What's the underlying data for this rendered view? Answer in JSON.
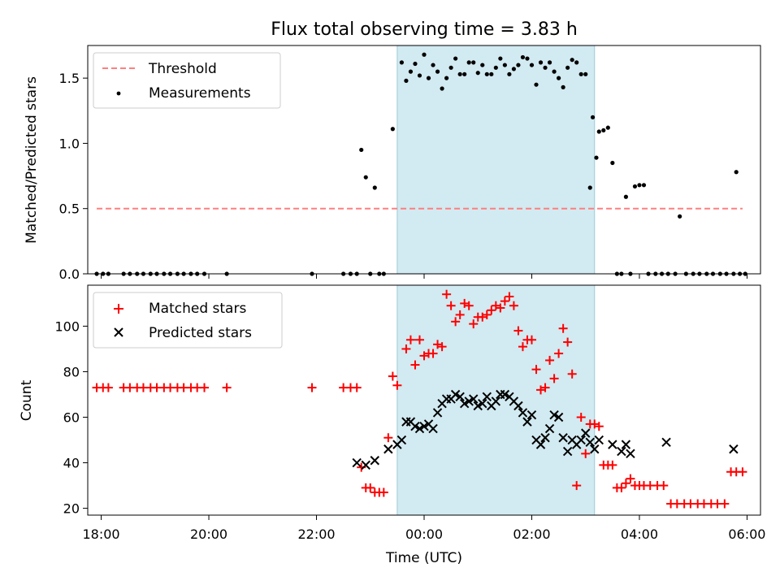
{
  "chart_data": [
    {
      "type": "scatter",
      "title": "Flux total observing time = 3.83 h",
      "xlabel": "",
      "ylabel": "Matched/Predicted stars",
      "xlim": [
        "17:45",
        "06:15"
      ],
      "ylim": [
        0,
        1.75
      ],
      "yticks": [
        "0.0",
        "0.5",
        "1.0",
        "1.5"
      ],
      "legend_position": "top-left",
      "shaded_interval": {
        "start": "23:30",
        "end": "03:10",
        "color": "#add8e6"
      },
      "threshold": {
        "name": "Threshold",
        "value": 0.5,
        "from": "17:55",
        "to": "05:55",
        "color": "#ff7f7f",
        "style": "dashed"
      },
      "series": [
        {
          "name": "Measurements",
          "color": "#000000",
          "marker": "dot",
          "points": [
            [
              "17:55",
              0
            ],
            [
              "18:02",
              0
            ],
            [
              "18:08",
              0
            ],
            [
              "18:25",
              0
            ],
            [
              "18:32",
              0
            ],
            [
              "18:40",
              0
            ],
            [
              "18:47",
              0
            ],
            [
              "18:55",
              0
            ],
            [
              "19:02",
              0
            ],
            [
              "19:10",
              0
            ],
            [
              "19:17",
              0
            ],
            [
              "19:25",
              0
            ],
            [
              "19:32",
              0
            ],
            [
              "19:40",
              0
            ],
            [
              "19:47",
              0
            ],
            [
              "19:55",
              0
            ],
            [
              "20:20",
              0
            ],
            [
              "21:55",
              0
            ],
            [
              "22:30",
              0
            ],
            [
              "22:38",
              0
            ],
            [
              "22:45",
              0
            ],
            [
              "22:50",
              0.95
            ],
            [
              "22:55",
              0.74
            ],
            [
              "23:00",
              0
            ],
            [
              "23:05",
              0.66
            ],
            [
              "23:10",
              0
            ],
            [
              "23:15",
              0
            ],
            [
              "23:25",
              1.11
            ],
            [
              "23:35",
              1.62
            ],
            [
              "23:40",
              1.48
            ],
            [
              "23:45",
              1.55
            ],
            [
              "23:50",
              1.61
            ],
            [
              "23:55",
              1.52
            ],
            [
              "00:00",
              1.68
            ],
            [
              "00:05",
              1.5
            ],
            [
              "00:10",
              1.6
            ],
            [
              "00:15",
              1.55
            ],
            [
              "00:20",
              1.42
            ],
            [
              "00:25",
              1.5
            ],
            [
              "00:30",
              1.58
            ],
            [
              "00:35",
              1.65
            ],
            [
              "00:40",
              1.53
            ],
            [
              "00:45",
              1.53
            ],
            [
              "00:50",
              1.62
            ],
            [
              "00:55",
              1.62
            ],
            [
              "01:00",
              1.54
            ],
            [
              "01:05",
              1.6
            ],
            [
              "01:10",
              1.53
            ],
            [
              "01:15",
              1.53
            ],
            [
              "01:20",
              1.58
            ],
            [
              "01:25",
              1.65
            ],
            [
              "01:30",
              1.6
            ],
            [
              "01:35",
              1.53
            ],
            [
              "01:40",
              1.57
            ],
            [
              "01:45",
              1.6
            ],
            [
              "01:50",
              1.66
            ],
            [
              "01:55",
              1.65
            ],
            [
              "02:00",
              1.6
            ],
            [
              "02:05",
              1.45
            ],
            [
              "02:10",
              1.62
            ],
            [
              "02:15",
              1.58
            ],
            [
              "02:20",
              1.62
            ],
            [
              "02:25",
              1.55
            ],
            [
              "02:30",
              1.5
            ],
            [
              "02:35",
              1.43
            ],
            [
              "02:40",
              1.58
            ],
            [
              "02:45",
              1.64
            ],
            [
              "02:50",
              1.62
            ],
            [
              "02:55",
              1.53
            ],
            [
              "03:00",
              1.53
            ],
            [
              "03:05",
              0.66
            ],
            [
              "03:08",
              1.2
            ],
            [
              "03:12",
              0.89
            ],
            [
              "03:15",
              1.09
            ],
            [
              "03:20",
              1.1
            ],
            [
              "03:25",
              1.12
            ],
            [
              "03:30",
              0.85
            ],
            [
              "03:35",
              0
            ],
            [
              "03:40",
              0
            ],
            [
              "03:45",
              0.59
            ],
            [
              "03:50",
              0
            ],
            [
              "03:55",
              0.67
            ],
            [
              "04:00",
              0.68
            ],
            [
              "04:05",
              0.68
            ],
            [
              "04:10",
              0
            ],
            [
              "04:18",
              0
            ],
            [
              "04:25",
              0
            ],
            [
              "04:32",
              0
            ],
            [
              "04:40",
              0
            ],
            [
              "04:45",
              0.44
            ],
            [
              "04:52",
              0
            ],
            [
              "05:00",
              0
            ],
            [
              "05:07",
              0
            ],
            [
              "05:15",
              0
            ],
            [
              "05:22",
              0
            ],
            [
              "05:30",
              0
            ],
            [
              "05:37",
              0
            ],
            [
              "05:45",
              0
            ],
            [
              "05:48",
              0.78
            ],
            [
              "05:52",
              0
            ],
            [
              "05:58",
              0
            ]
          ]
        }
      ]
    },
    {
      "type": "scatter",
      "title": "",
      "xlabel": "Time (UTC)",
      "ylabel": "Count",
      "xlim": [
        "17:45",
        "06:15"
      ],
      "ylim": [
        17,
        118
      ],
      "yticks": [
        "20",
        "40",
        "60",
        "80",
        "100"
      ],
      "xticks": [
        "18:00",
        "20:00",
        "22:00",
        "00:00",
        "02:00",
        "04:00",
        "06:00"
      ],
      "legend_position": "top-left",
      "shaded_interval": {
        "start": "23:30",
        "end": "03:10",
        "color": "#add8e6"
      },
      "series": [
        {
          "name": "Matched stars",
          "color": "#ff0000",
          "marker": "plus",
          "points": [
            [
              "17:55",
              73
            ],
            [
              "18:02",
              73
            ],
            [
              "18:08",
              73
            ],
            [
              "18:25",
              73
            ],
            [
              "18:32",
              73
            ],
            [
              "18:40",
              73
            ],
            [
              "18:47",
              73
            ],
            [
              "18:55",
              73
            ],
            [
              "19:02",
              73
            ],
            [
              "19:10",
              73
            ],
            [
              "19:17",
              73
            ],
            [
              "19:25",
              73
            ],
            [
              "19:32",
              73
            ],
            [
              "19:40",
              73
            ],
            [
              "19:47",
              73
            ],
            [
              "19:55",
              73
            ],
            [
              "20:20",
              73
            ],
            [
              "21:55",
              73
            ],
            [
              "22:30",
              73
            ],
            [
              "22:38",
              73
            ],
            [
              "22:45",
              73
            ],
            [
              "22:50",
              38
            ],
            [
              "22:55",
              29
            ],
            [
              "23:00",
              29
            ],
            [
              "23:05",
              27
            ],
            [
              "23:10",
              27
            ],
            [
              "23:15",
              27
            ],
            [
              "23:20",
              51
            ],
            [
              "23:25",
              78
            ],
            [
              "23:30",
              74
            ],
            [
              "23:40",
              90
            ],
            [
              "23:45",
              94
            ],
            [
              "23:50",
              83
            ],
            [
              "23:55",
              94
            ],
            [
              "00:00",
              87
            ],
            [
              "00:05",
              88
            ],
            [
              "00:10",
              88
            ],
            [
              "00:15",
              92
            ],
            [
              "00:20",
              91
            ],
            [
              "00:25",
              114
            ],
            [
              "00:30",
              109
            ],
            [
              "00:35",
              102
            ],
            [
              "00:40",
              105
            ],
            [
              "00:45",
              110
            ],
            [
              "00:50",
              109
            ],
            [
              "00:55",
              101
            ],
            [
              "01:00",
              104
            ],
            [
              "01:05",
              104
            ],
            [
              "01:10",
              105
            ],
            [
              "01:15",
              107
            ],
            [
              "01:20",
              109
            ],
            [
              "01:25",
              108
            ],
            [
              "01:30",
              111
            ],
            [
              "01:35",
              113
            ],
            [
              "01:40",
              109
            ],
            [
              "01:45",
              98
            ],
            [
              "01:50",
              91
            ],
            [
              "01:55",
              94
            ],
            [
              "02:00",
              94
            ],
            [
              "02:05",
              81
            ],
            [
              "02:10",
              72
            ],
            [
              "02:15",
              73
            ],
            [
              "02:20",
              85
            ],
            [
              "02:25",
              77
            ],
            [
              "02:30",
              88
            ],
            [
              "02:35",
              99
            ],
            [
              "02:40",
              93
            ],
            [
              "02:45",
              79
            ],
            [
              "02:50",
              30
            ],
            [
              "02:55",
              60
            ],
            [
              "03:00",
              44
            ],
            [
              "03:05",
              57
            ],
            [
              "03:10",
              57
            ],
            [
              "03:15",
              56
            ],
            [
              "03:20",
              39
            ],
            [
              "03:25",
              39
            ],
            [
              "03:30",
              39
            ],
            [
              "03:35",
              29
            ],
            [
              "03:40",
              29
            ],
            [
              "03:45",
              31
            ],
            [
              "03:50",
              33
            ],
            [
              "03:55",
              30
            ],
            [
              "04:00",
              30
            ],
            [
              "04:05",
              30
            ],
            [
              "04:12",
              30
            ],
            [
              "04:20",
              30
            ],
            [
              "04:27",
              30
            ],
            [
              "04:35",
              22
            ],
            [
              "04:42",
              22
            ],
            [
              "04:50",
              22
            ],
            [
              "04:57",
              22
            ],
            [
              "05:05",
              22
            ],
            [
              "05:12",
              22
            ],
            [
              "05:20",
              22
            ],
            [
              "05:27",
              22
            ],
            [
              "05:35",
              22
            ],
            [
              "05:42",
              36
            ],
            [
              "05:48",
              36
            ],
            [
              "05:55",
              36
            ]
          ]
        },
        {
          "name": "Predicted stars",
          "color": "#000000",
          "marker": "x",
          "points": [
            [
              "22:45",
              40
            ],
            [
              "22:55",
              39
            ],
            [
              "23:05",
              41
            ],
            [
              "23:20",
              46
            ],
            [
              "23:30",
              48
            ],
            [
              "23:35",
              50
            ],
            [
              "23:40",
              58
            ],
            [
              "23:45",
              58
            ],
            [
              "23:50",
              56
            ],
            [
              "23:55",
              55
            ],
            [
              "00:00",
              56
            ],
            [
              "00:05",
              57
            ],
            [
              "00:10",
              55
            ],
            [
              "00:15",
              62
            ],
            [
              "00:20",
              66
            ],
            [
              "00:25",
              68
            ],
            [
              "00:30",
              68
            ],
            [
              "00:35",
              70
            ],
            [
              "00:40",
              69
            ],
            [
              "00:45",
              66
            ],
            [
              "00:50",
              67
            ],
            [
              "00:55",
              68
            ],
            [
              "01:00",
              65
            ],
            [
              "01:05",
              66
            ],
            [
              "01:10",
              69
            ],
            [
              "01:15",
              65
            ],
            [
              "01:20",
              67
            ],
            [
              "01:25",
              70
            ],
            [
              "01:30",
              70
            ],
            [
              "01:35",
              69
            ],
            [
              "01:40",
              67
            ],
            [
              "01:45",
              65
            ],
            [
              "01:50",
              62
            ],
            [
              "01:55",
              58
            ],
            [
              "02:00",
              61
            ],
            [
              "02:05",
              50
            ],
            [
              "02:10",
              48
            ],
            [
              "02:15",
              51
            ],
            [
              "02:20",
              55
            ],
            [
              "02:25",
              61
            ],
            [
              "02:30",
              60
            ],
            [
              "02:35",
              51
            ],
            [
              "02:40",
              45
            ],
            [
              "02:45",
              50
            ],
            [
              "02:50",
              48
            ],
            [
              "02:55",
              50
            ],
            [
              "03:00",
              53
            ],
            [
              "03:05",
              49
            ],
            [
              "03:10",
              46
            ],
            [
              "03:15",
              50
            ],
            [
              "03:30",
              48
            ],
            [
              "03:40",
              45
            ],
            [
              "03:45",
              48
            ],
            [
              "03:50",
              44
            ],
            [
              "04:30",
              49
            ],
            [
              "05:45",
              46
            ]
          ]
        }
      ]
    }
  ]
}
